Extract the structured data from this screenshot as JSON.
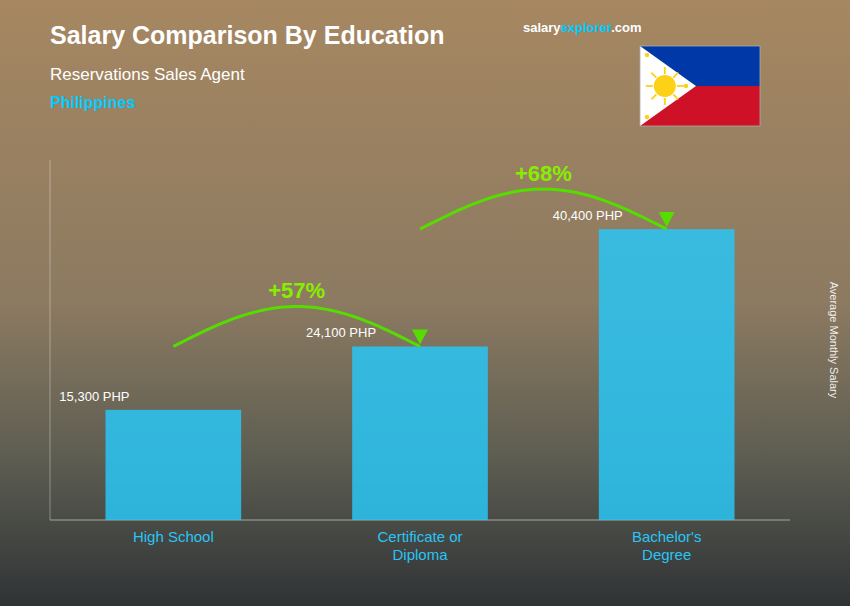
{
  "chart_data": {
    "type": "bar",
    "title": "Salary Comparison By Education",
    "subtitle": "Reservations Sales Agent",
    "ylabel": "Average Monthly Salary",
    "annotations": [
      "Philippines",
      "salary",
      "explorer",
      ".com",
      "+57%",
      "+68%"
    ],
    "categories": [
      "High School",
      "Certificate or\nDiploma",
      "Bachelor's\nDegree"
    ],
    "values": [
      15300,
      24100,
      40400
    ],
    "value_labels": [
      "15,300 PHP",
      "24,100 PHP",
      "40,400 PHP"
    ],
    "data_labels": true,
    "color": "#29c5f6",
    "ylim": [
      0,
      50000
    ],
    "tick_labels": "x",
    "grid": false
  }
}
